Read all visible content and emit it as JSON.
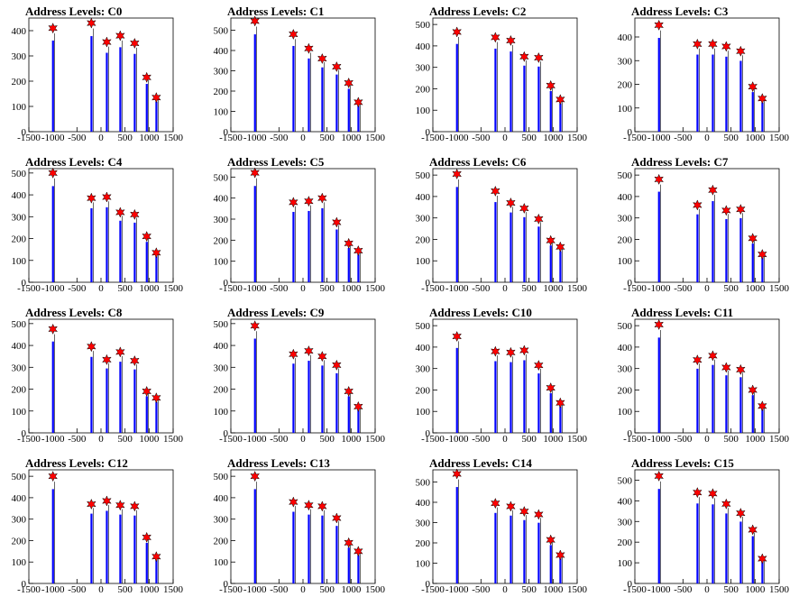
{
  "chart_data": {
    "type": "bar",
    "title_prefix": "Address Levels: ",
    "xlim": [
      -1500,
      1500
    ],
    "xticks": [
      -1500,
      -1000,
      -500,
      0,
      500,
      1000,
      1500
    ],
    "xtick_labels": [
      "-1500",
      "-1000",
      "-500",
      "0",
      "500",
      "1000",
      "1500"
    ],
    "marker": {
      "shape": "star",
      "color": "#ff0000"
    },
    "histogram_color": "#0000ff",
    "panels": [
      {
        "title": "Address Levels: C0",
        "ylim": [
          0,
          450
        ],
        "yticks": [
          0,
          100,
          200,
          300,
          400
        ],
        "ytick_labels": [
          "0",
          "100",
          "200",
          "300",
          "400"
        ],
        "peaks": [
          {
            "x": -1000,
            "y": 410
          },
          {
            "x": -200,
            "y": 430
          },
          {
            "x": 120,
            "y": 355
          },
          {
            "x": 400,
            "y": 380
          },
          {
            "x": 700,
            "y": 350
          },
          {
            "x": 950,
            "y": 215
          },
          {
            "x": 1150,
            "y": 135
          }
        ]
      },
      {
        "title": "Address Levels: C1",
        "ylim": [
          0,
          560
        ],
        "yticks": [
          0,
          100,
          200,
          300,
          400,
          500
        ],
        "ytick_labels": [
          "0",
          "100",
          "200",
          "300",
          "400",
          "500"
        ],
        "peaks": [
          {
            "x": -1000,
            "y": 545
          },
          {
            "x": -200,
            "y": 480
          },
          {
            "x": 120,
            "y": 410
          },
          {
            "x": 400,
            "y": 360
          },
          {
            "x": 700,
            "y": 320
          },
          {
            "x": 950,
            "y": 240
          },
          {
            "x": 1150,
            "y": 145
          }
        ]
      },
      {
        "title": "Address Levels: C2",
        "ylim": [
          0,
          530
        ],
        "yticks": [
          0,
          100,
          200,
          300,
          400,
          500
        ],
        "ytick_labels": [
          "0",
          "100",
          "200",
          "300",
          "400",
          "500"
        ],
        "peaks": [
          {
            "x": -1000,
            "y": 465
          },
          {
            "x": -200,
            "y": 440
          },
          {
            "x": 120,
            "y": 425
          },
          {
            "x": 400,
            "y": 350
          },
          {
            "x": 700,
            "y": 345
          },
          {
            "x": 950,
            "y": 215
          },
          {
            "x": 1150,
            "y": 150
          }
        ]
      },
      {
        "title": "Address Levels: C3",
        "ylim": [
          0,
          480
        ],
        "yticks": [
          0,
          100,
          200,
          300,
          400
        ],
        "ytick_labels": [
          "0",
          "100",
          "200",
          "300",
          "400"
        ],
        "peaks": [
          {
            "x": -1000,
            "y": 450
          },
          {
            "x": -200,
            "y": 370
          },
          {
            "x": 120,
            "y": 370
          },
          {
            "x": 400,
            "y": 360
          },
          {
            "x": 700,
            "y": 340
          },
          {
            "x": 950,
            "y": 190
          },
          {
            "x": 1150,
            "y": 140
          }
        ]
      },
      {
        "title": "Address Levels: C4",
        "ylim": [
          0,
          520
        ],
        "yticks": [
          0,
          100,
          200,
          300,
          400,
          500
        ],
        "ytick_labels": [
          "0",
          "100",
          "200",
          "300",
          "400",
          "500"
        ],
        "peaks": [
          {
            "x": -1000,
            "y": 500
          },
          {
            "x": -200,
            "y": 385
          },
          {
            "x": 120,
            "y": 390
          },
          {
            "x": 400,
            "y": 320
          },
          {
            "x": 700,
            "y": 310
          },
          {
            "x": 950,
            "y": 210
          },
          {
            "x": 1150,
            "y": 135
          }
        ]
      },
      {
        "title": "Address Levels: C5",
        "ylim": [
          0,
          540
        ],
        "yticks": [
          0,
          100,
          200,
          300,
          400,
          500
        ],
        "ytick_labels": [
          "0",
          "100",
          "200",
          "300",
          "400",
          "500"
        ],
        "peaks": [
          {
            "x": -1000,
            "y": 520
          },
          {
            "x": -200,
            "y": 380
          },
          {
            "x": 120,
            "y": 385
          },
          {
            "x": 400,
            "y": 400
          },
          {
            "x": 700,
            "y": 285
          },
          {
            "x": 950,
            "y": 185
          },
          {
            "x": 1150,
            "y": 150
          }
        ]
      },
      {
        "title": "Address Levels: C6",
        "ylim": [
          0,
          530
        ],
        "yticks": [
          0,
          100,
          200,
          300,
          400,
          500
        ],
        "ytick_labels": [
          "0",
          "100",
          "200",
          "300",
          "400",
          "500"
        ],
        "peaks": [
          {
            "x": -1000,
            "y": 505
          },
          {
            "x": -200,
            "y": 425
          },
          {
            "x": 120,
            "y": 370
          },
          {
            "x": 400,
            "y": 345
          },
          {
            "x": 700,
            "y": 295
          },
          {
            "x": 950,
            "y": 195
          },
          {
            "x": 1150,
            "y": 165
          }
        ]
      },
      {
        "title": "Address Levels: C7",
        "ylim": [
          0,
          530
        ],
        "yticks": [
          0,
          100,
          200,
          300,
          400,
          500
        ],
        "ytick_labels": [
          "0",
          "100",
          "200",
          "300",
          "400",
          "500"
        ],
        "peaks": [
          {
            "x": -1000,
            "y": 480
          },
          {
            "x": -200,
            "y": 360
          },
          {
            "x": 120,
            "y": 430
          },
          {
            "x": 400,
            "y": 335
          },
          {
            "x": 700,
            "y": 340
          },
          {
            "x": 950,
            "y": 205
          },
          {
            "x": 1150,
            "y": 130
          }
        ]
      },
      {
        "title": "Address Levels: C8",
        "ylim": [
          0,
          520
        ],
        "yticks": [
          0,
          100,
          200,
          300,
          400,
          500
        ],
        "ytick_labels": [
          "0",
          "100",
          "200",
          "300",
          "400",
          "500"
        ],
        "peaks": [
          {
            "x": -1000,
            "y": 475
          },
          {
            "x": -200,
            "y": 395
          },
          {
            "x": 120,
            "y": 335
          },
          {
            "x": 400,
            "y": 370
          },
          {
            "x": 700,
            "y": 330
          },
          {
            "x": 950,
            "y": 190
          },
          {
            "x": 1150,
            "y": 160
          }
        ]
      },
      {
        "title": "Address Levels: C9",
        "ylim": [
          0,
          520
        ],
        "yticks": [
          0,
          100,
          200,
          300,
          400,
          500
        ],
        "ytick_labels": [
          "0",
          "100",
          "200",
          "300",
          "400",
          "500"
        ],
        "peaks": [
          {
            "x": -1000,
            "y": 490
          },
          {
            "x": -200,
            "y": 360
          },
          {
            "x": 120,
            "y": 375
          },
          {
            "x": 400,
            "y": 350
          },
          {
            "x": 700,
            "y": 310
          },
          {
            "x": 950,
            "y": 190
          },
          {
            "x": 1150,
            "y": 120
          }
        ]
      },
      {
        "title": "Address Levels: C10",
        "ylim": [
          0,
          530
        ],
        "yticks": [
          0,
          100,
          200,
          300,
          400,
          500
        ],
        "ytick_labels": [
          "0",
          "100",
          "200",
          "300",
          "400",
          "500"
        ],
        "peaks": [
          {
            "x": -1000,
            "y": 450
          },
          {
            "x": -200,
            "y": 380
          },
          {
            "x": 120,
            "y": 375
          },
          {
            "x": 400,
            "y": 385
          },
          {
            "x": 700,
            "y": 315
          },
          {
            "x": 950,
            "y": 210
          },
          {
            "x": 1150,
            "y": 140
          }
        ]
      },
      {
        "title": "Address Levels: C11",
        "ylim": [
          0,
          530
        ],
        "yticks": [
          0,
          100,
          200,
          300,
          400,
          500
        ],
        "ytick_labels": [
          "0",
          "100",
          "200",
          "300",
          "400",
          "500"
        ],
        "peaks": [
          {
            "x": -1000,
            "y": 505
          },
          {
            "x": -200,
            "y": 340
          },
          {
            "x": 120,
            "y": 360
          },
          {
            "x": 400,
            "y": 305
          },
          {
            "x": 700,
            "y": 295
          },
          {
            "x": 950,
            "y": 200
          },
          {
            "x": 1150,
            "y": 125
          }
        ]
      },
      {
        "title": "Address Levels: C12",
        "ylim": [
          0,
          530
        ],
        "yticks": [
          0,
          100,
          200,
          300,
          400,
          500
        ],
        "ytick_labels": [
          "0",
          "100",
          "200",
          "300",
          "400",
          "500"
        ],
        "peaks": [
          {
            "x": -1000,
            "y": 500
          },
          {
            "x": -200,
            "y": 370
          },
          {
            "x": 120,
            "y": 385
          },
          {
            "x": 400,
            "y": 365
          },
          {
            "x": 700,
            "y": 360
          },
          {
            "x": 950,
            "y": 215
          },
          {
            "x": 1150,
            "y": 125
          }
        ]
      },
      {
        "title": "Address Levels: C13",
        "ylim": [
          0,
          530
        ],
        "yticks": [
          0,
          100,
          200,
          300,
          400,
          500
        ],
        "ytick_labels": [
          "0",
          "100",
          "200",
          "300",
          "400",
          "500"
        ],
        "peaks": [
          {
            "x": -1000,
            "y": 500
          },
          {
            "x": -200,
            "y": 380
          },
          {
            "x": 120,
            "y": 365
          },
          {
            "x": 400,
            "y": 360
          },
          {
            "x": 700,
            "y": 305
          },
          {
            "x": 950,
            "y": 190
          },
          {
            "x": 1150,
            "y": 150
          }
        ]
      },
      {
        "title": "Address Levels: C14",
        "ylim": [
          0,
          560
        ],
        "yticks": [
          0,
          100,
          200,
          300,
          400,
          500
        ],
        "ytick_labels": [
          "0",
          "100",
          "200",
          "300",
          "400",
          "500"
        ],
        "peaks": [
          {
            "x": -1000,
            "y": 540
          },
          {
            "x": -200,
            "y": 395
          },
          {
            "x": 120,
            "y": 380
          },
          {
            "x": 400,
            "y": 355
          },
          {
            "x": 700,
            "y": 340
          },
          {
            "x": 950,
            "y": 215
          },
          {
            "x": 1150,
            "y": 140
          }
        ]
      },
      {
        "title": "Address Levels: C15",
        "ylim": [
          0,
          550
        ],
        "yticks": [
          0,
          100,
          200,
          300,
          400,
          500
        ],
        "ytick_labels": [
          "0",
          "100",
          "200",
          "300",
          "400",
          "500"
        ],
        "peaks": [
          {
            "x": -1000,
            "y": 520
          },
          {
            "x": -200,
            "y": 440
          },
          {
            "x": 120,
            "y": 435
          },
          {
            "x": 400,
            "y": 385
          },
          {
            "x": 700,
            "y": 340
          },
          {
            "x": 950,
            "y": 260
          },
          {
            "x": 1150,
            "y": 120
          }
        ]
      }
    ]
  }
}
